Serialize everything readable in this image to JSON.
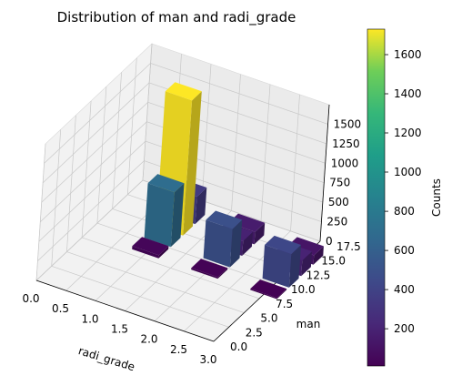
{
  "chart_data": {
    "type": "bar3d",
    "title": "Distribution of man and radi_grade",
    "xlabel": "radi_grade",
    "ylabel": "man",
    "zlabel": "",
    "xlim": [
      0,
      3
    ],
    "ylim": [
      0,
      17.5
    ],
    "zlim": [
      0,
      1750
    ],
    "x_ticks": [
      "0.0",
      "0.5",
      "1.0",
      "1.5",
      "2.0",
      "2.5",
      "3.0"
    ],
    "y_ticks": [
      "0.0",
      "2.5",
      "5.0",
      "7.5",
      "10.0",
      "12.5",
      "15.0",
      "17.5"
    ],
    "z_ticks": [
      "0",
      "250",
      "500",
      "750",
      "1000",
      "1250",
      "1500"
    ],
    "colorbar": {
      "label": "Counts",
      "range": [
        10,
        1730
      ],
      "ticks": [
        "200",
        "400",
        "600",
        "800",
        "1000",
        "1200",
        "1400",
        "1600"
      ],
      "colormap": "viridis"
    },
    "bars": [
      {
        "x": 1.0,
        "y": 15.0,
        "count": 350
      },
      {
        "x": 1.0,
        "y": 13.0,
        "count": 1730
      },
      {
        "x": 1.0,
        "y": 11.0,
        "count": 700
      },
      {
        "x": 1.0,
        "y": 9.0,
        "count": 40
      },
      {
        "x": 2.0,
        "y": 15.0,
        "count": 160
      },
      {
        "x": 2.0,
        "y": 13.0,
        "count": 190
      },
      {
        "x": 2.0,
        "y": 11.0,
        "count": 490
      },
      {
        "x": 2.0,
        "y": 9.0,
        "count": 20
      },
      {
        "x": 3.0,
        "y": 15.0,
        "count": 120
      },
      {
        "x": 3.0,
        "y": 13.0,
        "count": 200
      },
      {
        "x": 3.0,
        "y": 11.0,
        "count": 430
      },
      {
        "x": 3.0,
        "y": 9.0,
        "count": 15
      }
    ]
  }
}
